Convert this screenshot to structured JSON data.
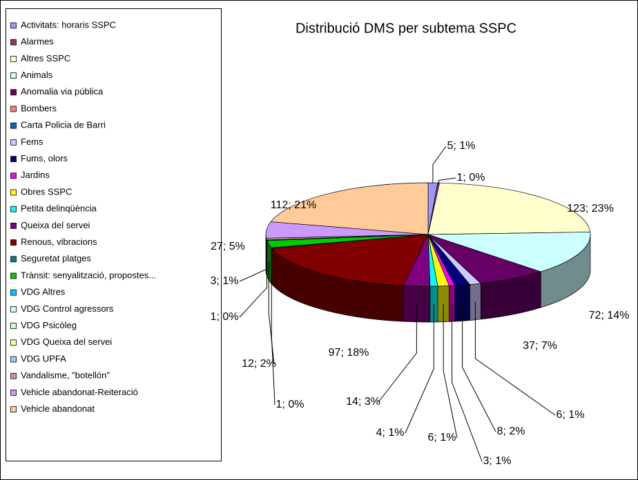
{
  "chart_data": {
    "type": "pie",
    "title": "Distribució DMS per subtema SSPC",
    "categories": [
      "Activitats: horaris SSPC",
      "Alarmes",
      "Altres SSPC",
      "Animals",
      "Anomalia via pública",
      "Bombers",
      "Carta Policia de Barri",
      "Fems",
      "Fums, olors",
      "Jardins",
      "Obres SSPC",
      "Petita delinqüència",
      "Queixa del servei",
      "Renous, vibracions",
      "Seguretat platges",
      "Trànsit: senyalització, propostes...",
      "VDG Altres",
      "VDG Control agressors",
      "VDG Psicòleg",
      "VDG Queixa del servei",
      "VDG UPFA",
      "Vandalisme, \"botellón\"",
      "Vehicle abandonat-Reiteració",
      "Vehicle abandonat"
    ],
    "values": [
      5,
      1,
      123,
      72,
      37,
      0,
      0,
      6,
      8,
      3,
      6,
      4,
      14,
      97,
      1,
      12,
      1,
      0,
      0,
      0,
      0,
      3,
      27,
      112
    ],
    "value_labels": [
      "5; 1%",
      "1; 0%",
      "123; 23%",
      "72; 14%",
      "37; 7%",
      null,
      null,
      "6; 1%",
      "8; 2%",
      "3; 1%",
      "6; 1%",
      "4; 1%",
      "14; 3%",
      "97; 18%",
      "1; 0%",
      "12; 2%",
      "1; 0%",
      null,
      null,
      null,
      null,
      "3; 1%",
      "27; 5%",
      "112; 21%"
    ],
    "colors": [
      "#9999ff",
      "#993366",
      "#ffffcc",
      "#ccffff",
      "#660066",
      "#ff8080",
      "#0066cc",
      "#ccccff",
      "#000080",
      "#ff00ff",
      "#ffff00",
      "#00ffff",
      "#800080",
      "#800000",
      "#008080",
      "#00cc00",
      "#00ccff",
      "#ccffff",
      "#ccffcc",
      "#ffff99",
      "#99ccff",
      "#cc9999",
      "#cc99ff",
      "#ffcc99"
    ],
    "legend": "left"
  }
}
